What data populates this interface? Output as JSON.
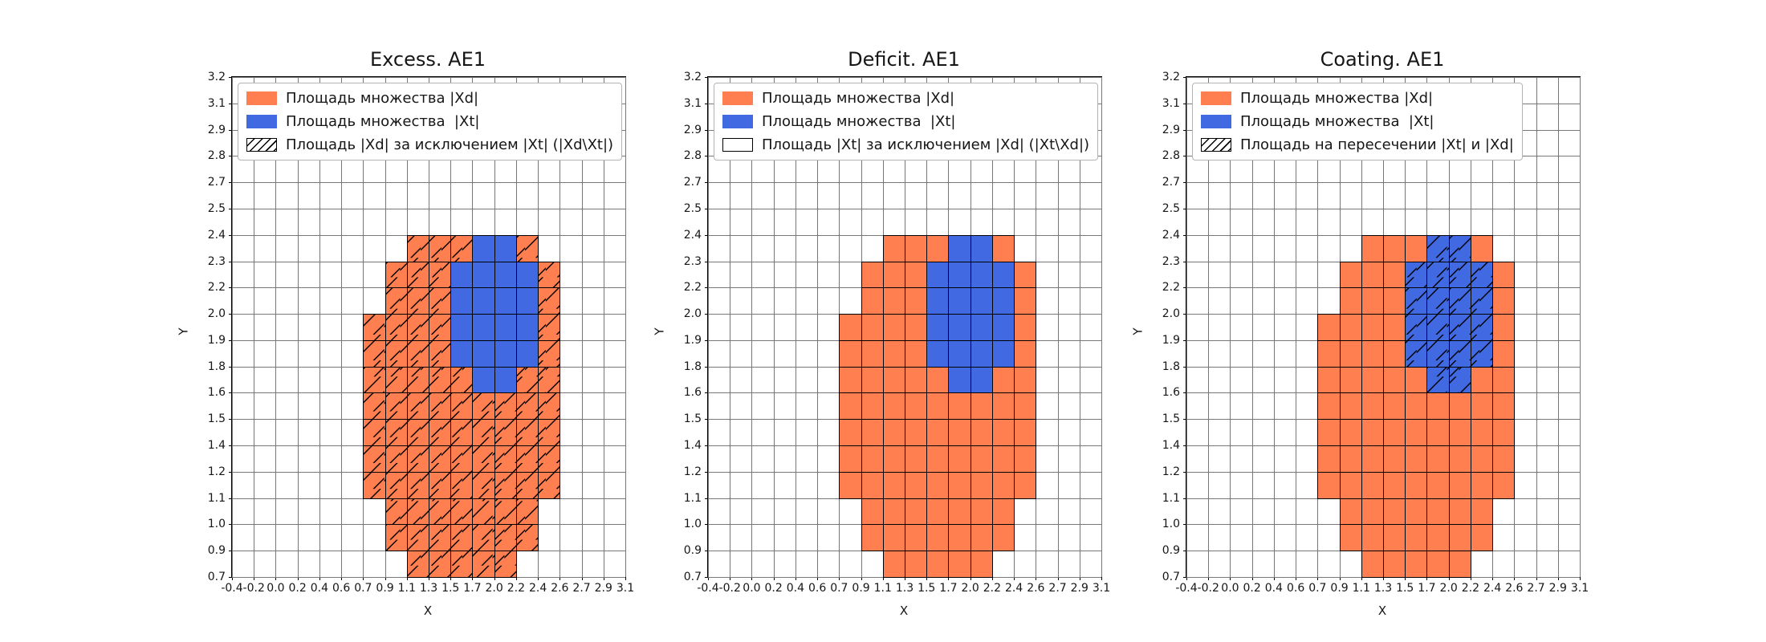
{
  "figure": {
    "background": "#ffffff",
    "colors": {
      "xd": "#ff7f50",
      "xt": "#4169e1",
      "grid": "#787878",
      "spine": "#000000"
    }
  },
  "chart_data": [
    {
      "type": "heatmap",
      "title": "Excess. AE1",
      "xlabel": "X",
      "ylabel": "Y",
      "legend_position": "upper left",
      "grid": true,
      "x_tick_labels": [
        "-0.4",
        "-0.2",
        "0.0",
        "0.2",
        "0.4",
        "0.6",
        "0.7",
        "0.9",
        "1.1",
        "1.3",
        "1.5",
        "1.7",
        "2.0",
        "2.2",
        "2.4",
        "2.6",
        "2.7",
        "2.9",
        "3.1"
      ],
      "y_tick_labels": [
        "3.2",
        "3.1",
        "2.9",
        "2.8",
        "2.7",
        "2.5",
        "2.4",
        "2.3",
        "2.2",
        "2.0",
        "1.9",
        "1.8",
        "1.6",
        "1.5",
        "1.4",
        "1.2",
        "1.1",
        "1.0",
        "0.9",
        "0.7"
      ],
      "grid_rows": [
        "..................",
        "..................",
        "..................",
        "..................",
        "..................",
        "..................",
        "........OOOBBO....",
        ".......OOOBBBBO...",
        ".......OOOBBBBO...",
        "......OOOOBBBBO...",
        "......OOOOBBBBO...",
        "......OOOOOBBOO...",
        "......OOOOOOOOO...",
        "......OOOOOOOOO...",
        "......OOOOOOOOO...",
        "......OOOOOOOOO...",
        ".......OOOOOOO....",
        ".......OOOOOOO....",
        "........OOOOO....."
      ],
      "hatch_on": "O",
      "legend": [
        {
          "swatch": "xd",
          "label": "Площадь множества |Xd|"
        },
        {
          "swatch": "xt",
          "label": "Площадь множества  |Xt|"
        },
        {
          "swatch": "hatch",
          "label": "Площадь |Xd| за исключением |Xt| (|Xd\\Xt|)"
        }
      ]
    },
    {
      "type": "heatmap",
      "title": "Deficit. AE1",
      "xlabel": "X",
      "ylabel": "Y",
      "legend_position": "upper left",
      "grid": true,
      "x_tick_labels": [
        "-0.4",
        "-0.2",
        "0.0",
        "0.2",
        "0.4",
        "0.6",
        "0.7",
        "0.9",
        "1.1",
        "1.3",
        "1.5",
        "1.7",
        "2.0",
        "2.2",
        "2.4",
        "2.6",
        "2.7",
        "2.9",
        "3.1"
      ],
      "y_tick_labels": [
        "3.2",
        "3.1",
        "2.9",
        "2.8",
        "2.7",
        "2.5",
        "2.4",
        "2.3",
        "2.2",
        "2.0",
        "1.9",
        "1.8",
        "1.6",
        "1.5",
        "1.4",
        "1.2",
        "1.1",
        "1.0",
        "0.9",
        "0.7"
      ],
      "grid_rows": [
        "..................",
        "..................",
        "..................",
        "..................",
        "..................",
        "..................",
        "........OOOBBO....",
        ".......OOOBBBBO...",
        ".......OOOBBBBO...",
        "......OOOOBBBBO...",
        "......OOOOBBBBO...",
        "......OOOOOBBOO...",
        "......OOOOOOOOO...",
        "......OOOOOOOOO...",
        "......OOOOOOOOO...",
        "......OOOOOOOOO...",
        ".......OOOOOOO....",
        ".......OOOOOOO....",
        "........OOOOO....."
      ],
      "hatch_on": "",
      "legend": [
        {
          "swatch": "xd",
          "label": "Площадь множества |Xd|"
        },
        {
          "swatch": "xt",
          "label": "Площадь множества  |Xt|"
        },
        {
          "swatch": "empty",
          "label": "Площадь |Xt| за исключением |Xd| (|Xt\\Xd|)"
        }
      ]
    },
    {
      "type": "heatmap",
      "title": "Coating. AE1",
      "xlabel": "X",
      "ylabel": "Y",
      "legend_position": "upper left",
      "grid": true,
      "x_tick_labels": [
        "-0.4",
        "-0.2",
        "0.0",
        "0.2",
        "0.4",
        "0.6",
        "0.7",
        "0.9",
        "1.1",
        "1.3",
        "1.5",
        "1.7",
        "2.0",
        "2.2",
        "2.4",
        "2.6",
        "2.7",
        "2.9",
        "3.1"
      ],
      "y_tick_labels": [
        "3.2",
        "3.1",
        "2.9",
        "2.8",
        "2.7",
        "2.5",
        "2.4",
        "2.3",
        "2.2",
        "2.0",
        "1.9",
        "1.8",
        "1.6",
        "1.5",
        "1.4",
        "1.2",
        "1.1",
        "1.0",
        "0.9",
        "0.7"
      ],
      "grid_rows": [
        "..................",
        "..................",
        "..................",
        "..................",
        "..................",
        "..................",
        "........OOOBBO....",
        ".......OOOBBBBO...",
        ".......OOOBBBBO...",
        "......OOOOBBBBO...",
        "......OOOOBBBBO...",
        "......OOOOOBBOO...",
        "......OOOOOOOOO...",
        "......OOOOOOOOO...",
        "......OOOOOOOOO...",
        "......OOOOOOOOO...",
        ".......OOOOOOO....",
        ".......OOOOOOO....",
        "........OOOOO....."
      ],
      "hatch_on": "B",
      "legend": [
        {
          "swatch": "xd",
          "label": "Площадь множества |Xd|"
        },
        {
          "swatch": "xt",
          "label": "Площадь множества  |Xt|"
        },
        {
          "swatch": "hatch",
          "label": "Площадь на пересечении |Xt| и |Xd|"
        }
      ]
    }
  ]
}
